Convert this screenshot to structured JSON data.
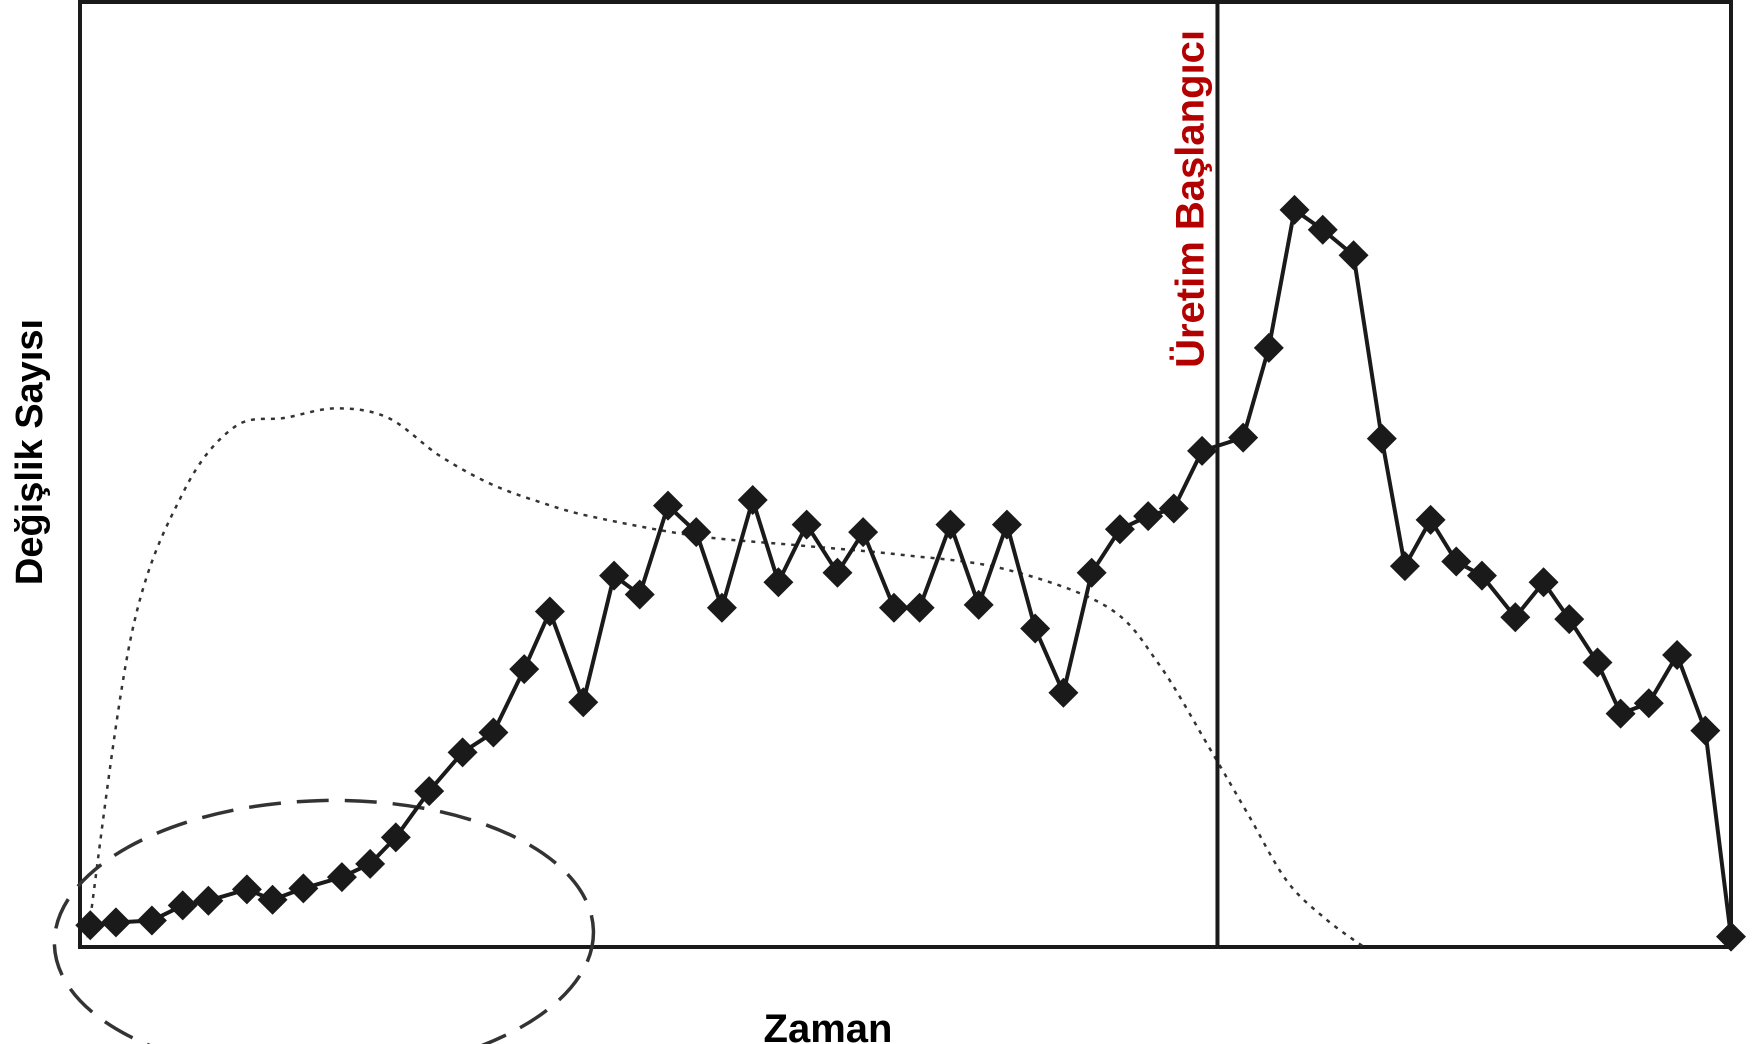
{
  "chart_data": {
    "type": "line",
    "title": "",
    "xlabel": "Zaman",
    "ylabel": "Değişlik Sayısı",
    "ylim": [
      0,
      100
    ],
    "grid": false,
    "legend": "none",
    "series": [
      {
        "name": "",
        "style": "solid line with diamond markers",
        "color": "#1a1a1a",
        "points": [
          [
            0.4,
            2.3
          ],
          [
            1.4,
            2.6
          ],
          [
            2.8,
            2.8
          ],
          [
            4.0,
            4.4
          ],
          [
            5.0,
            4.9
          ],
          [
            6.5,
            6.1
          ],
          [
            7.5,
            5.0
          ],
          [
            8.7,
            6.2
          ],
          [
            10.2,
            7.4
          ],
          [
            11.3,
            8.8
          ],
          [
            12.3,
            11.6
          ],
          [
            13.6,
            16.5
          ],
          [
            14.9,
            20.6
          ],
          [
            16.1,
            22.7
          ],
          [
            17.3,
            29.4
          ],
          [
            18.3,
            35.5
          ],
          [
            19.6,
            25.9
          ],
          [
            20.8,
            39.3
          ],
          [
            21.8,
            37.3
          ],
          [
            22.9,
            46.7
          ],
          [
            24.0,
            43.9
          ],
          [
            25.0,
            35.9
          ],
          [
            26.2,
            47.3
          ],
          [
            27.2,
            38.6
          ],
          [
            28.3,
            44.7
          ],
          [
            29.5,
            39.6
          ],
          [
            30.5,
            43.9
          ],
          [
            31.7,
            35.9
          ],
          [
            32.7,
            35.9
          ],
          [
            33.9,
            44.7
          ],
          [
            35.0,
            36.2
          ],
          [
            36.1,
            44.7
          ],
          [
            37.2,
            33.7
          ],
          [
            38.3,
            26.9
          ],
          [
            39.4,
            39.6
          ],
          [
            40.5,
            44.2
          ],
          [
            41.6,
            45.6
          ],
          [
            42.6,
            46.4
          ],
          [
            43.7,
            52.5
          ],
          [
            45.3,
            53.9
          ],
          [
            46.3,
            63.4
          ],
          [
            47.3,
            78.0
          ],
          [
            48.4,
            75.9
          ],
          [
            49.6,
            73.2
          ],
          [
            50.7,
            53.8
          ],
          [
            51.6,
            40.3
          ],
          [
            52.6,
            45.2
          ],
          [
            53.6,
            40.8
          ],
          [
            54.6,
            39.3
          ],
          [
            55.9,
            34.9
          ],
          [
            57.0,
            38.6
          ],
          [
            58.0,
            34.7
          ],
          [
            59.1,
            30.1
          ],
          [
            60.0,
            24.7
          ],
          [
            61.1,
            25.8
          ],
          [
            62.2,
            30.9
          ],
          [
            63.3,
            22.9
          ],
          [
            64.3,
            1.1
          ]
        ]
      },
      {
        "name": "",
        "style": "dotted curve",
        "color": "#333333",
        "points": [
          [
            0.3,
            1
          ],
          [
            2,
            33
          ],
          [
            4,
            48
          ],
          [
            6,
            55
          ],
          [
            8,
            56
          ],
          [
            10,
            57
          ],
          [
            12,
            56
          ],
          [
            14,
            52
          ],
          [
            16,
            49
          ],
          [
            18,
            47
          ],
          [
            20,
            45.5
          ],
          [
            24,
            43.5
          ],
          [
            28,
            42.5
          ],
          [
            32,
            41.5
          ],
          [
            36,
            40
          ],
          [
            40,
            36
          ],
          [
            42,
            30
          ],
          [
            44,
            21
          ],
          [
            45.5,
            14
          ],
          [
            47,
            7
          ],
          [
            48.5,
            3
          ],
          [
            50,
            0
          ]
        ]
      }
    ],
    "annotations": [
      {
        "type": "vertical-line",
        "x": 44.3,
        "label": "Üretim Başlangıcı",
        "label_color": "#b30000"
      },
      {
        "type": "dashed-ellipse",
        "center": [
          9.5,
          1
        ],
        "rx": 10.5,
        "ry": 14.5
      }
    ]
  }
}
